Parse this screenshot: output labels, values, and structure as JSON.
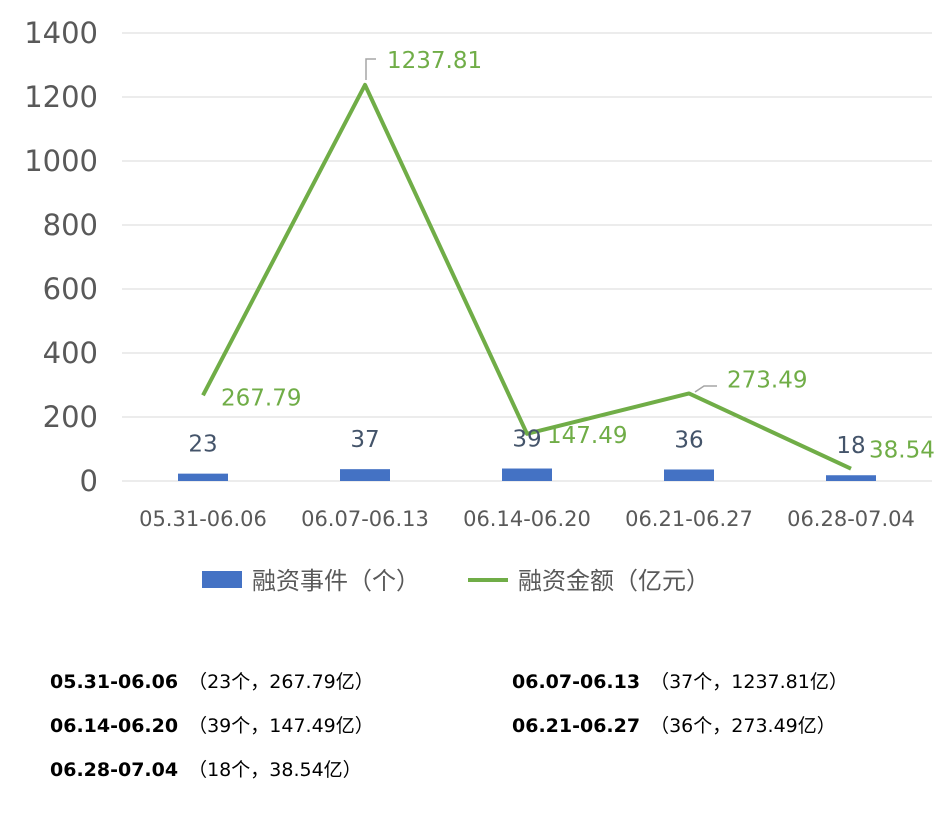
{
  "chart_data": {
    "type": "bar",
    "categories": [
      "05.31-06.06",
      "06.07-06.13",
      "06.14-06.20",
      "06.21-06.27",
      "06.28-07.04"
    ],
    "series": [
      {
        "name": "融资事件（个）",
        "type": "bar",
        "color": "#4472C4",
        "values": [
          23,
          37,
          39,
          36,
          18
        ],
        "labels": [
          "23",
          "37",
          "39",
          "36",
          "18"
        ]
      },
      {
        "name": "融资金额（亿元）",
        "type": "line",
        "color": "#70AD47",
        "values": [
          267.79,
          1237.81,
          147.49,
          273.49,
          38.54
        ],
        "labels": [
          "267.79",
          "1237.81",
          "147.49",
          "273.49",
          "38.54"
        ]
      }
    ],
    "ylim": [
      0,
      1400
    ],
    "yticks": [
      "0",
      "200",
      "400",
      "600",
      "800",
      "1000",
      "1200",
      "1400"
    ],
    "grid": true,
    "legend": "bottom",
    "gridColor": "#d9d9d9",
    "axisTextColor": "#595959"
  },
  "notes": [
    {
      "period": "05.31-06.06",
      "detail": "（23个，267.79亿）"
    },
    {
      "period": "06.07-06.13",
      "detail": "（37个，1237.81亿）"
    },
    {
      "period": "06.14-06.20",
      "detail": "（39个，147.49亿）"
    },
    {
      "period": "06.21-06.27",
      "detail": "（36个，273.49亿）"
    },
    {
      "period": "06.28-07.04",
      "detail": "（18个，38.54亿）"
    }
  ]
}
